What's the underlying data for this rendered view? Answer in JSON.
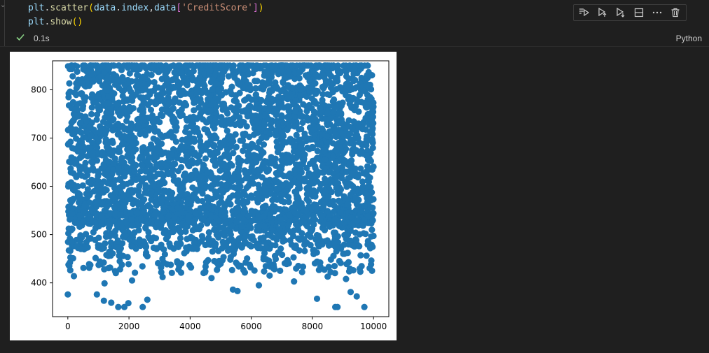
{
  "cell": {
    "code_lines": [
      {
        "parts": [
          {
            "t": "plt",
            "c": "tok-var"
          },
          {
            "t": ".",
            "c": "tok-pl"
          },
          {
            "t": "scatter",
            "c": "tok-fn"
          },
          {
            "t": "(",
            "c": "tok-br1"
          },
          {
            "t": "data",
            "c": "tok-var"
          },
          {
            "t": ".",
            "c": "tok-pl"
          },
          {
            "t": "index",
            "c": "tok-var"
          },
          {
            "t": ",",
            "c": "tok-pl"
          },
          {
            "t": "data",
            "c": "tok-var"
          },
          {
            "t": "[",
            "c": "tok-br2"
          },
          {
            "t": "'CreditScore'",
            "c": "tok-str"
          },
          {
            "t": "]",
            "c": "tok-br2"
          },
          {
            "t": ")",
            "c": "tok-br1"
          }
        ]
      },
      {
        "parts": [
          {
            "t": "plt",
            "c": "tok-var"
          },
          {
            "t": ".",
            "c": "tok-pl"
          },
          {
            "t": "show",
            "c": "tok-fn"
          },
          {
            "t": "()",
            "c": "tok-br1"
          }
        ]
      }
    ],
    "exec_time": "0.1s",
    "language": "Python",
    "toolbar_icons": [
      "execute-above-icon",
      "execute-cell-below-icon",
      "execute-below-icon",
      "split-cell-icon",
      "more-actions-icon",
      "delete-cell-icon"
    ]
  },
  "colors": {
    "background": "#1f1f1f",
    "marker": "#1f77b4",
    "check": "#89d185"
  },
  "chart_data": {
    "type": "scatter",
    "title": "",
    "xlabel": "",
    "ylabel": "",
    "xlim": [
      -500,
      10500
    ],
    "ylim": [
      330,
      860
    ],
    "xticks": [
      0,
      2000,
      4000,
      6000,
      8000,
      10000
    ],
    "yticks": [
      400,
      500,
      600,
      700,
      800
    ],
    "n_points": 10000,
    "distribution_note": "dense band 500-850 across all indices, sparse outliers down to 350",
    "sample_outliers": [
      {
        "x": 0,
        "y": 376
      },
      {
        "x": 950,
        "y": 376
      },
      {
        "x": 1180,
        "y": 363
      },
      {
        "x": 1420,
        "y": 359
      },
      {
        "x": 1650,
        "y": 350
      },
      {
        "x": 1850,
        "y": 350
      },
      {
        "x": 1980,
        "y": 358
      },
      {
        "x": 2450,
        "y": 350
      },
      {
        "x": 2600,
        "y": 365
      },
      {
        "x": 5400,
        "y": 386
      },
      {
        "x": 5550,
        "y": 383
      },
      {
        "x": 6250,
        "y": 395
      },
      {
        "x": 8150,
        "y": 367
      },
      {
        "x": 8750,
        "y": 350
      },
      {
        "x": 8820,
        "y": 350
      },
      {
        "x": 9250,
        "y": 381
      },
      {
        "x": 9450,
        "y": 372
      },
      {
        "x": 9700,
        "y": 350
      },
      {
        "x": 9950,
        "y": 425
      },
      {
        "x": 1200,
        "y": 399
      },
      {
        "x": 2100,
        "y": 405
      },
      {
        "x": 4700,
        "y": 410
      },
      {
        "x": 7400,
        "y": 403
      },
      {
        "x": 9100,
        "y": 408
      },
      {
        "x": 200,
        "y": 414
      },
      {
        "x": 3100,
        "y": 412
      },
      {
        "x": 6600,
        "y": 415
      },
      {
        "x": 8500,
        "y": 413
      }
    ]
  }
}
